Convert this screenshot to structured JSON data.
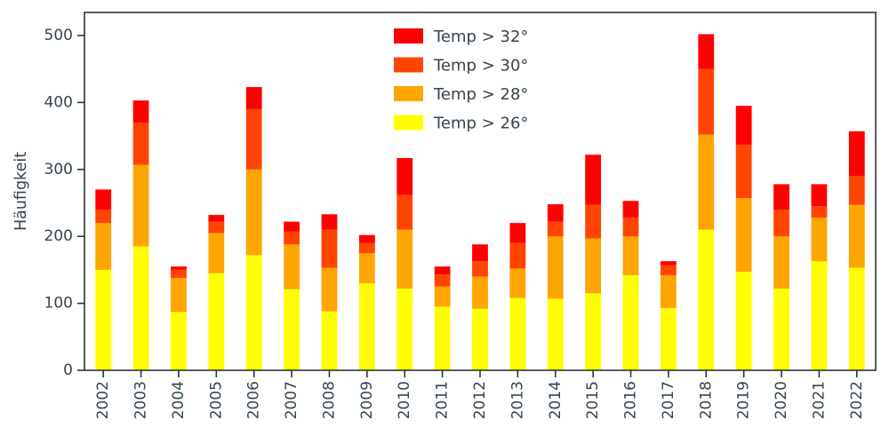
{
  "chart_data": {
    "type": "bar",
    "stacked": true,
    "title": "",
    "xlabel": "",
    "ylabel": "Häufigkeit",
    "ylim": [
      0,
      500
    ],
    "yticks": [
      0,
      100,
      200,
      300,
      400,
      500
    ],
    "grid": false,
    "legend_position": "upper center-left",
    "text_color": "#36454f",
    "spine_color": "#2b363d",
    "categories": [
      "2002",
      "2003",
      "2004",
      "2005",
      "2006",
      "2007",
      "2008",
      "2009",
      "2010",
      "2011",
      "2012",
      "2013",
      "2014",
      "2015",
      "2016",
      "2017",
      "2018",
      "2019",
      "2020",
      "2021",
      "2022"
    ],
    "series": [
      {
        "name": "Temp > 32°",
        "color": "#ff0000",
        "values": [
          30,
          33,
          5,
          10,
          33,
          15,
          23,
          12,
          55,
          12,
          25,
          30,
          26,
          75,
          25,
          6,
          52,
          58,
          38,
          33,
          67
        ]
      },
      {
        "name": "Temp > 30°",
        "color": "#ff4500",
        "values": [
          20,
          63,
          12,
          17,
          90,
          19,
          57,
          15,
          52,
          18,
          23,
          38,
          22,
          50,
          28,
          15,
          98,
          80,
          40,
          17,
          43
        ]
      },
      {
        "name": "Temp > 28°",
        "color": "#ffa500",
        "values": [
          70,
          122,
          51,
          60,
          128,
          67,
          65,
          45,
          88,
          30,
          48,
          44,
          93,
          82,
          58,
          49,
          142,
          110,
          78,
          65,
          94
        ]
      },
      {
        "name": "Temp > 26°",
        "color": "#ffff00",
        "values": [
          150,
          185,
          87,
          145,
          172,
          121,
          88,
          130,
          122,
          95,
          92,
          108,
          107,
          115,
          142,
          93,
          210,
          147,
          122,
          163,
          153
        ]
      }
    ],
    "totals": [
      270,
      403,
      155,
      232,
      423,
      222,
      233,
      202,
      317,
      155,
      188,
      220,
      248,
      322,
      253,
      163,
      502,
      395,
      278,
      278,
      357
    ]
  }
}
